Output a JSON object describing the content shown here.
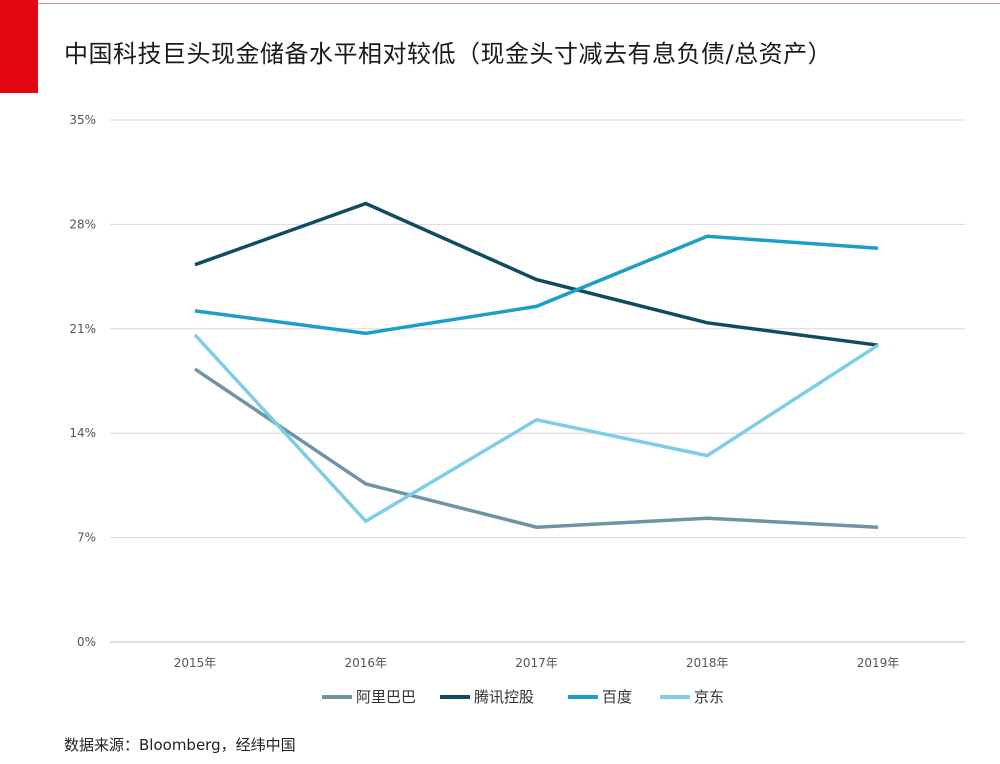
{
  "header": {
    "title": "中国科技巨头现金储备水平相对较低（现金头寸减去有息负债/总资产）"
  },
  "footer": {
    "source": "数据来源：Bloomberg，经纬中国"
  },
  "colors": {
    "accent": "#e30613",
    "grid": "#d9d9d9"
  },
  "chart_data": {
    "type": "line",
    "title": "中国科技巨头现金储备水平相对较低（现金头寸减去有息负债/总资产）",
    "xlabel": "",
    "ylabel": "",
    "categories": [
      "2015年",
      "2016年",
      "2017年",
      "2018年",
      "2019年"
    ],
    "ylim": [
      0,
      35
    ],
    "yticks": [
      0,
      7,
      14,
      21,
      28,
      35
    ],
    "ytick_labels": [
      "0%",
      "7%",
      "14%",
      "21%",
      "28%",
      "35%"
    ],
    "grid": true,
    "legend_position": "bottom",
    "series": [
      {
        "name": "阿里巴巴",
        "color": "#6f93a6",
        "values": [
          18.3,
          10.6,
          7.7,
          8.3,
          7.7
        ]
      },
      {
        "name": "腾讯控股",
        "color": "#0f4c60",
        "values": [
          25.3,
          29.4,
          24.3,
          21.4,
          19.9
        ]
      },
      {
        "name": "百度",
        "color": "#1b9ec9",
        "values": [
          22.2,
          20.7,
          22.5,
          27.2,
          26.4
        ]
      },
      {
        "name": "京东",
        "color": "#7ecde8",
        "values": [
          20.6,
          8.1,
          14.9,
          12.5,
          19.9
        ]
      }
    ]
  }
}
